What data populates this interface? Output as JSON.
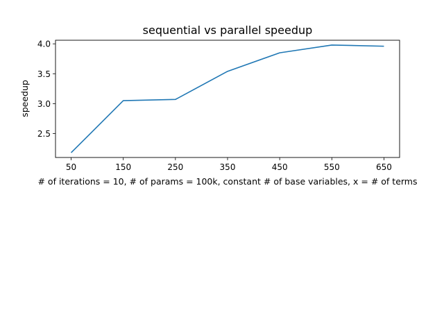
{
  "chart_data": {
    "type": "line",
    "title": "sequential vs parallel speedup",
    "xlabel": "# of iterations = 10, # of params = 100k, constant # of base variables, x = # of terms",
    "ylabel": "speedup",
    "x": [
      50,
      150,
      250,
      350,
      450,
      550,
      650
    ],
    "series": [
      {
        "values": [
          2.18,
          3.05,
          3.07,
          3.54,
          3.85,
          3.98,
          3.96
        ]
      }
    ],
    "xticks": [
      "50",
      "150",
      "250",
      "350",
      "450",
      "550",
      "650"
    ],
    "yticks": [
      "2.5",
      "3.0",
      "3.5",
      "4.0"
    ],
    "xlim": [
      20,
      680
    ],
    "ylim": [
      2.1,
      4.06
    ],
    "grid": false,
    "line_color": "#1f77b4"
  }
}
